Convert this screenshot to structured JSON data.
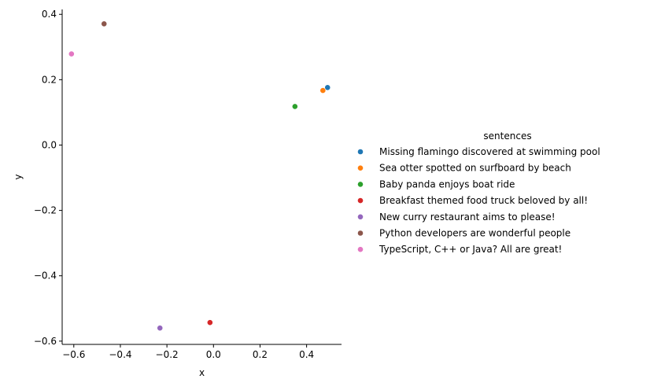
{
  "chart_data": {
    "type": "scatter",
    "xlabel": "x",
    "ylabel": "y",
    "xlim": [
      -0.65,
      0.55
    ],
    "ylim": [
      -0.61,
      0.415
    ],
    "xticks": [
      -0.6,
      -0.4,
      -0.2,
      0.0,
      0.2,
      0.4
    ],
    "yticks": [
      -0.6,
      -0.4,
      -0.2,
      0.0,
      0.2,
      0.4
    ],
    "xtick_labels": [
      "−0.6",
      "−0.4",
      "−0.2",
      "0.0",
      "0.2",
      "0.4"
    ],
    "ytick_labels": [
      "−0.6",
      "−0.4",
      "−0.2",
      "0.0",
      "0.2",
      "0.4"
    ],
    "grid": false,
    "legend": {
      "title": "sentences",
      "position": "right"
    },
    "series": [
      {
        "name": "Missing flamingo discovered at swimming pool",
        "color": "#1f77b4",
        "x": [
          0.49
        ],
        "y": [
          0.176
        ]
      },
      {
        "name": "Sea otter spotted on surfboard by beach",
        "color": "#ff7f0e",
        "x": [
          0.47
        ],
        "y": [
          0.167
        ]
      },
      {
        "name": "Baby panda enjoys boat ride",
        "color": "#2ca02c",
        "x": [
          0.35
        ],
        "y": [
          0.118
        ]
      },
      {
        "name": "Breakfast themed food truck beloved by all!",
        "color": "#d62728",
        "x": [
          -0.015
        ],
        "y": [
          -0.543
        ]
      },
      {
        "name": "New curry restaurant aims to please!",
        "color": "#9467bd",
        "x": [
          -0.23
        ],
        "y": [
          -0.56
        ]
      },
      {
        "name": "Python developers are wonderful people",
        "color": "#8c564b",
        "x": [
          -0.47
        ],
        "y": [
          0.371
        ]
      },
      {
        "name": "TypeScript, C++ or Java? All are great!",
        "color": "#e377c2",
        "x": [
          -0.61
        ],
        "y": [
          0.279
        ]
      }
    ]
  }
}
